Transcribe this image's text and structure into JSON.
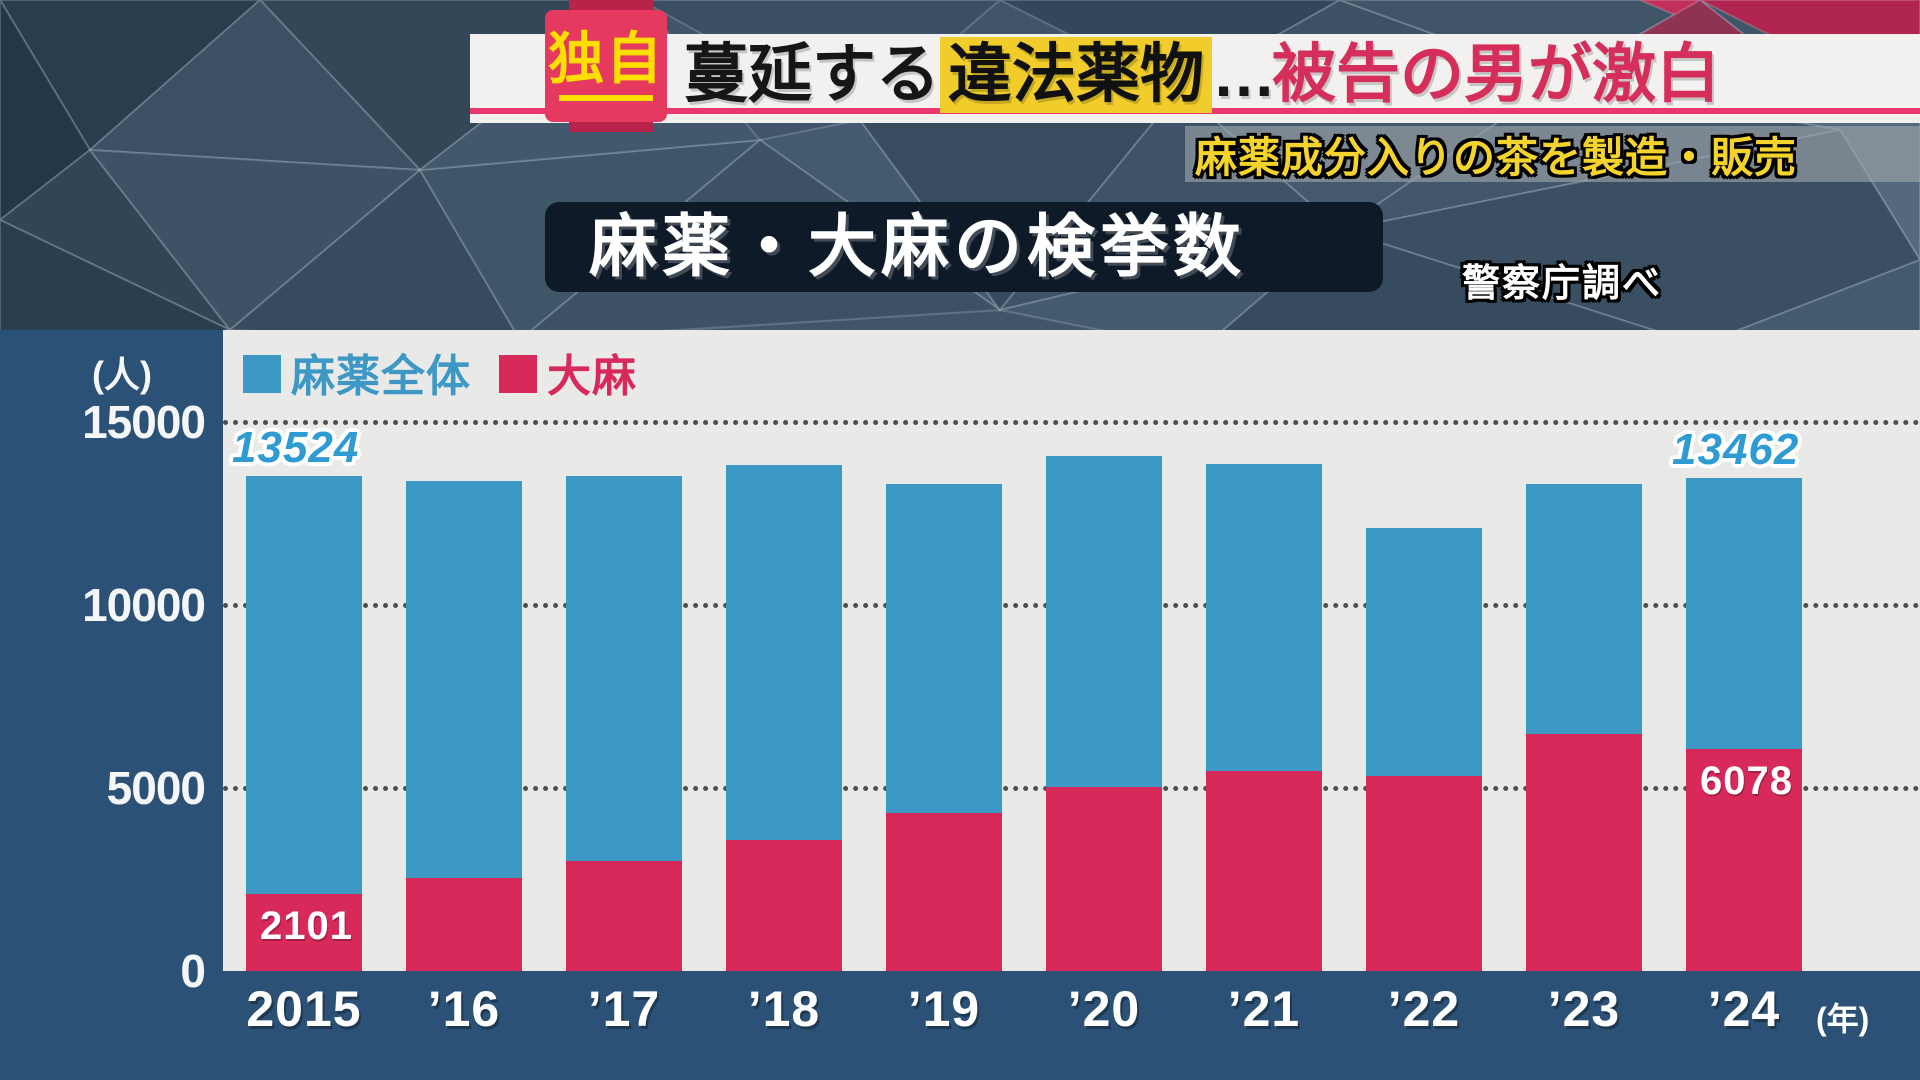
{
  "header": {
    "badge": "独自",
    "headline": {
      "part1": "蔓延する",
      "highlight": "違法薬物",
      "ellipsis": "…",
      "part2": "被告の男が激白"
    },
    "subtitle": "麻薬成分入りの茶を製造・販売"
  },
  "title_block": {
    "title": "麻薬・大麻の検挙数",
    "source": "警察庁調べ"
  },
  "chart": {
    "unit_label": "(人)"
  },
  "colors": {
    "total_blue": "#3e98c5",
    "cannabis_red": "#d8295b",
    "panel_navy": "#2c5176",
    "plot_gray": "#e9e9e7",
    "badge_pink": "#e5395f",
    "accent_yellow": "#ffdf00",
    "highlight_yellow": "#f0cd2a",
    "headline_red": "#d52e5a"
  },
  "chart_data": {
    "type": "bar",
    "title": "麻薬・大麻の検挙数",
    "source": "警察庁調べ",
    "unit": "人",
    "categories": [
      "2015",
      "’16",
      "’17",
      "’18",
      "’19",
      "’20",
      "’21",
      "’22",
      "’23",
      "’24"
    ],
    "x_axis_suffix": "(年)",
    "series": [
      {
        "name": "麻薬全体",
        "color": "#3e98c5",
        "values": [
          13524,
          13400,
          13520,
          13830,
          13310,
          14070,
          13850,
          12110,
          13310,
          13462
        ]
      },
      {
        "name": "大麻",
        "color": "#d8295b",
        "values": [
          2101,
          2540,
          3000,
          3580,
          4320,
          5030,
          5460,
          5330,
          6480,
          6078
        ]
      }
    ],
    "y_ticks": [
      0,
      5000,
      10000,
      15000
    ],
    "ylim": [
      0,
      15000
    ],
    "grid": "dotted",
    "legend_position": "top-left",
    "annotations": [
      {
        "series": 0,
        "index": 0,
        "placement": "above"
      },
      {
        "series": 1,
        "index": 0,
        "placement": "inside-top"
      },
      {
        "series": 0,
        "index": 9,
        "placement": "above"
      },
      {
        "series": 1,
        "index": 9,
        "placement": "inside-top"
      }
    ]
  }
}
